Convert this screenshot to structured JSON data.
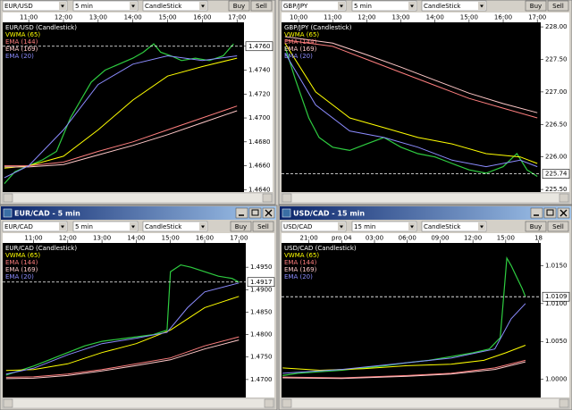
{
  "windows": [
    {
      "symbol": "EUR/USD",
      "interval": "5 min",
      "style": "CandleStick",
      "buy": "Buy",
      "sell": "Sell"
    },
    {
      "symbol": "GBP/JPY",
      "interval": "5 min",
      "style": "CandleStick",
      "buy": "Buy",
      "sell": "Sell"
    },
    {
      "title": "EUR/CAD - 5 min",
      "symbol": "EUR/CAD",
      "interval": "5 min",
      "style": "CandleStick",
      "buy": "Buy",
      "sell": "Sell"
    },
    {
      "title": "USD/CAD - 15 min",
      "symbol": "USD/CAD",
      "interval": "15 min",
      "style": "CandleStick",
      "buy": "Buy",
      "sell": "Sell"
    }
  ],
  "chart_data": [
    {
      "type": "line",
      "title": "EUR/USD (Candlestick)",
      "xlim": [
        10.25,
        17.2
      ],
      "xticks": [
        {
          "value": 11,
          "label": "11:00"
        },
        {
          "value": 12,
          "label": "12:00"
        },
        {
          "value": 13,
          "label": "13:00"
        },
        {
          "value": 14,
          "label": "14:00"
        },
        {
          "value": 15,
          "label": "15:00"
        },
        {
          "value": 16,
          "label": "16:00"
        },
        {
          "value": 17,
          "label": "17:00"
        }
      ],
      "ylim": [
        1.4638,
        1.478
      ],
      "yticks": [
        {
          "value": 1.464,
          "label": "1.4640"
        },
        {
          "value": 1.466,
          "label": "1.4660"
        },
        {
          "value": 1.468,
          "label": "1.4680"
        },
        {
          "value": 1.47,
          "label": "1.4700"
        },
        {
          "value": 1.472,
          "label": "1.4720"
        },
        {
          "value": 1.474,
          "label": "1.4740"
        },
        {
          "value": 1.476,
          "label": "1.4760"
        }
      ],
      "current": {
        "value": 1.476,
        "label": "1.4760"
      },
      "series": [
        {
          "color": "#2ecc40",
          "x": [
            10.3,
            10.6,
            11.0,
            11.4,
            11.8,
            12.2,
            12.5,
            12.8,
            13.2,
            13.6,
            14.0,
            14.3,
            14.6,
            14.8,
            15.1,
            15.4,
            15.8,
            16.2,
            16.6,
            16.9
          ],
          "values": [
            1.4645,
            1.4655,
            1.466,
            1.4665,
            1.4672,
            1.47,
            1.4715,
            1.473,
            1.474,
            1.4745,
            1.475,
            1.4755,
            1.4762,
            1.4755,
            1.4752,
            1.4748,
            1.475,
            1.4748,
            1.4752,
            1.4762
          ]
        },
        {
          "name": "VWMA (65)",
          "color": "#ffff00",
          "x": [
            10.3,
            11,
            12,
            13,
            14,
            15,
            16,
            17
          ],
          "values": [
            1.4658,
            1.466,
            1.4668,
            1.469,
            1.4715,
            1.4735,
            1.4743,
            1.475
          ]
        },
        {
          "name": "EMA (144)",
          "color": "#ff7f7f",
          "x": [
            10.3,
            11,
            12,
            13,
            14,
            15,
            16,
            17
          ],
          "values": [
            1.466,
            1.466,
            1.4663,
            1.4672,
            1.468,
            1.469,
            1.47,
            1.471
          ]
        },
        {
          "name": "EMA (169)",
          "color": "#ffc8c8",
          "x": [
            10.3,
            11,
            12,
            13,
            14,
            15,
            16,
            17
          ],
          "values": [
            1.4659,
            1.4659,
            1.4661,
            1.4669,
            1.4677,
            1.4686,
            1.4696,
            1.4706
          ]
        },
        {
          "name": "EMA (20)",
          "color": "#8c8cff",
          "x": [
            10.3,
            11,
            12,
            13,
            14,
            15,
            16,
            17
          ],
          "values": [
            1.465,
            1.466,
            1.469,
            1.4728,
            1.4745,
            1.4752,
            1.4748,
            1.4752
          ]
        }
      ]
    },
    {
      "type": "line",
      "title": "GBP/JPY (Candlestick)",
      "xlim": [
        9.5,
        17.1
      ],
      "xticks": [
        {
          "value": 10,
          "label": "10:00"
        },
        {
          "value": 11,
          "label": "11:00"
        },
        {
          "value": 12,
          "label": "12:00"
        },
        {
          "value": 13,
          "label": "13:00"
        },
        {
          "value": 14,
          "label": "14:00"
        },
        {
          "value": 15,
          "label": "15:00"
        },
        {
          "value": 16,
          "label": "16:00"
        },
        {
          "value": 17,
          "label": "17:00"
        }
      ],
      "ylim": [
        225.46,
        228.07
      ],
      "yticks": [
        {
          "value": 225.5,
          "label": "225.50"
        },
        {
          "value": 226,
          "label": "226.00"
        },
        {
          "value": 226.5,
          "label": "226.50"
        },
        {
          "value": 227,
          "label": "227.00"
        },
        {
          "value": 227.5,
          "label": "227.50"
        },
        {
          "value": 228,
          "label": "228.00"
        }
      ],
      "current": {
        "value": 225.74,
        "label": "225.74"
      },
      "series": [
        {
          "color": "#2ecc40",
          "x": [
            9.6,
            9.9,
            10.1,
            10.3,
            10.6,
            11.0,
            11.5,
            12.0,
            12.5,
            13.0,
            13.5,
            14.0,
            14.5,
            15.0,
            15.5,
            16.0,
            16.4,
            16.7,
            17.0
          ],
          "values": [
            227.7,
            227.2,
            226.9,
            226.6,
            226.3,
            226.15,
            226.1,
            226.2,
            226.3,
            226.15,
            226.05,
            226.0,
            225.9,
            225.8,
            225.75,
            225.85,
            226.05,
            225.8,
            225.7
          ]
        },
        {
          "name": "VWMA (65)",
          "color": "#ffff00",
          "x": [
            9.6,
            10.5,
            11.5,
            12.5,
            13.5,
            14.5,
            15.5,
            16.5,
            17.0
          ],
          "values": [
            227.75,
            227.0,
            226.6,
            226.45,
            226.3,
            226.2,
            226.05,
            226.0,
            225.9
          ]
        },
        {
          "name": "EMA (144)",
          "color": "#ff7f7f",
          "x": [
            9.6,
            11,
            12,
            13,
            14,
            15,
            16,
            17
          ],
          "values": [
            227.8,
            227.7,
            227.5,
            227.3,
            227.1,
            226.9,
            226.75,
            226.6
          ]
        },
        {
          "name": "EMA (169)",
          "color": "#ffc8c8",
          "x": [
            9.6,
            11,
            12,
            13,
            14,
            15,
            16,
            17
          ],
          "values": [
            227.85,
            227.75,
            227.57,
            227.38,
            227.18,
            226.98,
            226.82,
            226.68
          ]
        },
        {
          "name": "EMA (20)",
          "color": "#8c8cff",
          "x": [
            9.6,
            10.5,
            11.5,
            12.5,
            13.5,
            14.5,
            15.5,
            16.5,
            17.0
          ],
          "values": [
            227.6,
            226.8,
            226.4,
            226.3,
            226.15,
            225.95,
            225.85,
            225.95,
            225.85
          ]
        }
      ]
    },
    {
      "type": "line",
      "title": "EUR/CAD (Candlestick)",
      "xlim": [
        10.1,
        17.2
      ],
      "xticks": [
        {
          "value": 11,
          "label": "11:00"
        },
        {
          "value": 12,
          "label": "12:00"
        },
        {
          "value": 13,
          "label": "13:00"
        },
        {
          "value": 14,
          "label": "14:00"
        },
        {
          "value": 15,
          "label": "15:00"
        },
        {
          "value": 16,
          "label": "16:00"
        },
        {
          "value": 17,
          "label": "17:00"
        }
      ],
      "ylim": [
        1.466,
        1.5004
      ],
      "yticks": [
        {
          "value": 1.47,
          "label": "1.4700"
        },
        {
          "value": 1.475,
          "label": "1.4750"
        },
        {
          "value": 1.48,
          "label": "1.4800"
        },
        {
          "value": 1.485,
          "label": "1.4850"
        },
        {
          "value": 1.49,
          "label": "1.4900"
        },
        {
          "value": 1.495,
          "label": "1.4950"
        }
      ],
      "current": {
        "value": 1.4917,
        "label": "1.4917"
      },
      "series": [
        {
          "color": "#2ecc40",
          "x": [
            10.2,
            10.6,
            11.0,
            11.5,
            12.0,
            12.5,
            13.0,
            13.5,
            14.0,
            14.5,
            14.9,
            15.0,
            15.3,
            15.6,
            16.0,
            16.4,
            16.8,
            17.0
          ],
          "values": [
            1.471,
            1.472,
            1.473,
            1.4745,
            1.476,
            1.4775,
            1.4785,
            1.479,
            1.4795,
            1.48,
            1.481,
            1.494,
            1.4955,
            1.495,
            1.494,
            1.493,
            1.4925,
            1.4917
          ]
        },
        {
          "name": "VWMA (65)",
          "color": "#ffff00",
          "x": [
            10.2,
            11,
            12,
            13,
            14,
            15,
            16,
            17
          ],
          "values": [
            1.472,
            1.4722,
            1.4735,
            1.476,
            1.478,
            1.481,
            1.486,
            1.4885
          ]
        },
        {
          "name": "EMA (144)",
          "color": "#ff7f7f",
          "x": [
            10.2,
            11,
            12,
            13,
            14,
            15,
            16,
            17
          ],
          "values": [
            1.4705,
            1.4706,
            1.4712,
            1.4722,
            1.4735,
            1.4748,
            1.4775,
            1.4795
          ]
        },
        {
          "name": "EMA (169)",
          "color": "#ffc8c8",
          "x": [
            10.2,
            11,
            12,
            13,
            14,
            15,
            16,
            17
          ],
          "values": [
            1.4702,
            1.4703,
            1.4709,
            1.4719,
            1.4731,
            1.4744,
            1.4768,
            1.4788
          ]
        },
        {
          "name": "EMA (20)",
          "color": "#8c8cff",
          "x": [
            10.2,
            11,
            12,
            13,
            14,
            14.9,
            15.5,
            16,
            17
          ],
          "values": [
            1.4712,
            1.4725,
            1.4755,
            1.478,
            1.4792,
            1.4805,
            1.486,
            1.4895,
            1.4915
          ]
        }
      ]
    },
    {
      "type": "line",
      "title": "USD/CAD (Candlestick)",
      "xlim": [
        18.5,
        42.2
      ],
      "xticks": [
        {
          "value": 21,
          "label": "21:00"
        },
        {
          "value": 24,
          "label": "pro 04"
        },
        {
          "value": 27,
          "label": "03:00"
        },
        {
          "value": 30,
          "label": "06:00"
        },
        {
          "value": 33,
          "label": "09:00"
        },
        {
          "value": 36,
          "label": "12:00"
        },
        {
          "value": 39,
          "label": "15:00"
        },
        {
          "value": 42,
          "label": "18"
        }
      ],
      "ylim": [
        0.9976,
        1.018
      ],
      "yticks": [
        {
          "value": 1,
          "label": "1.0000"
        },
        {
          "value": 1.005,
          "label": "1.0050"
        },
        {
          "value": 1.01,
          "label": "1.0100"
        },
        {
          "value": 1.015,
          "label": "1.0150"
        }
      ],
      "current": {
        "value": 1.0109,
        "label": "1.0109"
      },
      "series": [
        {
          "color": "#2ecc40",
          "x": [
            18.6,
            20,
            22,
            24,
            26,
            28,
            30,
            32,
            34,
            36,
            37.5,
            38.5,
            39.1,
            39.5,
            40,
            40.5,
            40.8
          ],
          "values": [
            1.0005,
            1.0008,
            1.001,
            1.0012,
            1.0015,
            1.0018,
            1.0022,
            1.0025,
            1.003,
            1.0035,
            1.004,
            1.0055,
            1.016,
            1.015,
            1.0135,
            1.012,
            1.0109
          ]
        },
        {
          "name": "VWMA (65)",
          "color": "#ffff00",
          "x": [
            18.6,
            22,
            26,
            30,
            34,
            37,
            39,
            40.8
          ],
          "values": [
            1.0015,
            1.0012,
            1.0014,
            1.0018,
            1.002,
            1.0025,
            1.0035,
            1.0045
          ]
        },
        {
          "name": "EMA (144)",
          "color": "#ff7f7f",
          "x": [
            18.6,
            24,
            30,
            34,
            38,
            40.8
          ],
          "values": [
            1.0003,
            1.0002,
            1.0005,
            1.0008,
            1.0015,
            1.0025
          ]
        },
        {
          "name": "EMA (169)",
          "color": "#ffc8c8",
          "x": [
            18.6,
            24,
            30,
            34,
            38,
            40.8
          ],
          "values": [
            1.0002,
            1.0001,
            1.0004,
            1.0007,
            1.0013,
            1.0023
          ]
        },
        {
          "name": "EMA (20)",
          "color": "#8c8cff",
          "x": [
            18.6,
            24,
            30,
            34,
            38,
            39.5,
            40.8
          ],
          "values": [
            1.0008,
            1.0013,
            1.0022,
            1.0028,
            1.004,
            1.008,
            1.01
          ]
        }
      ]
    }
  ]
}
